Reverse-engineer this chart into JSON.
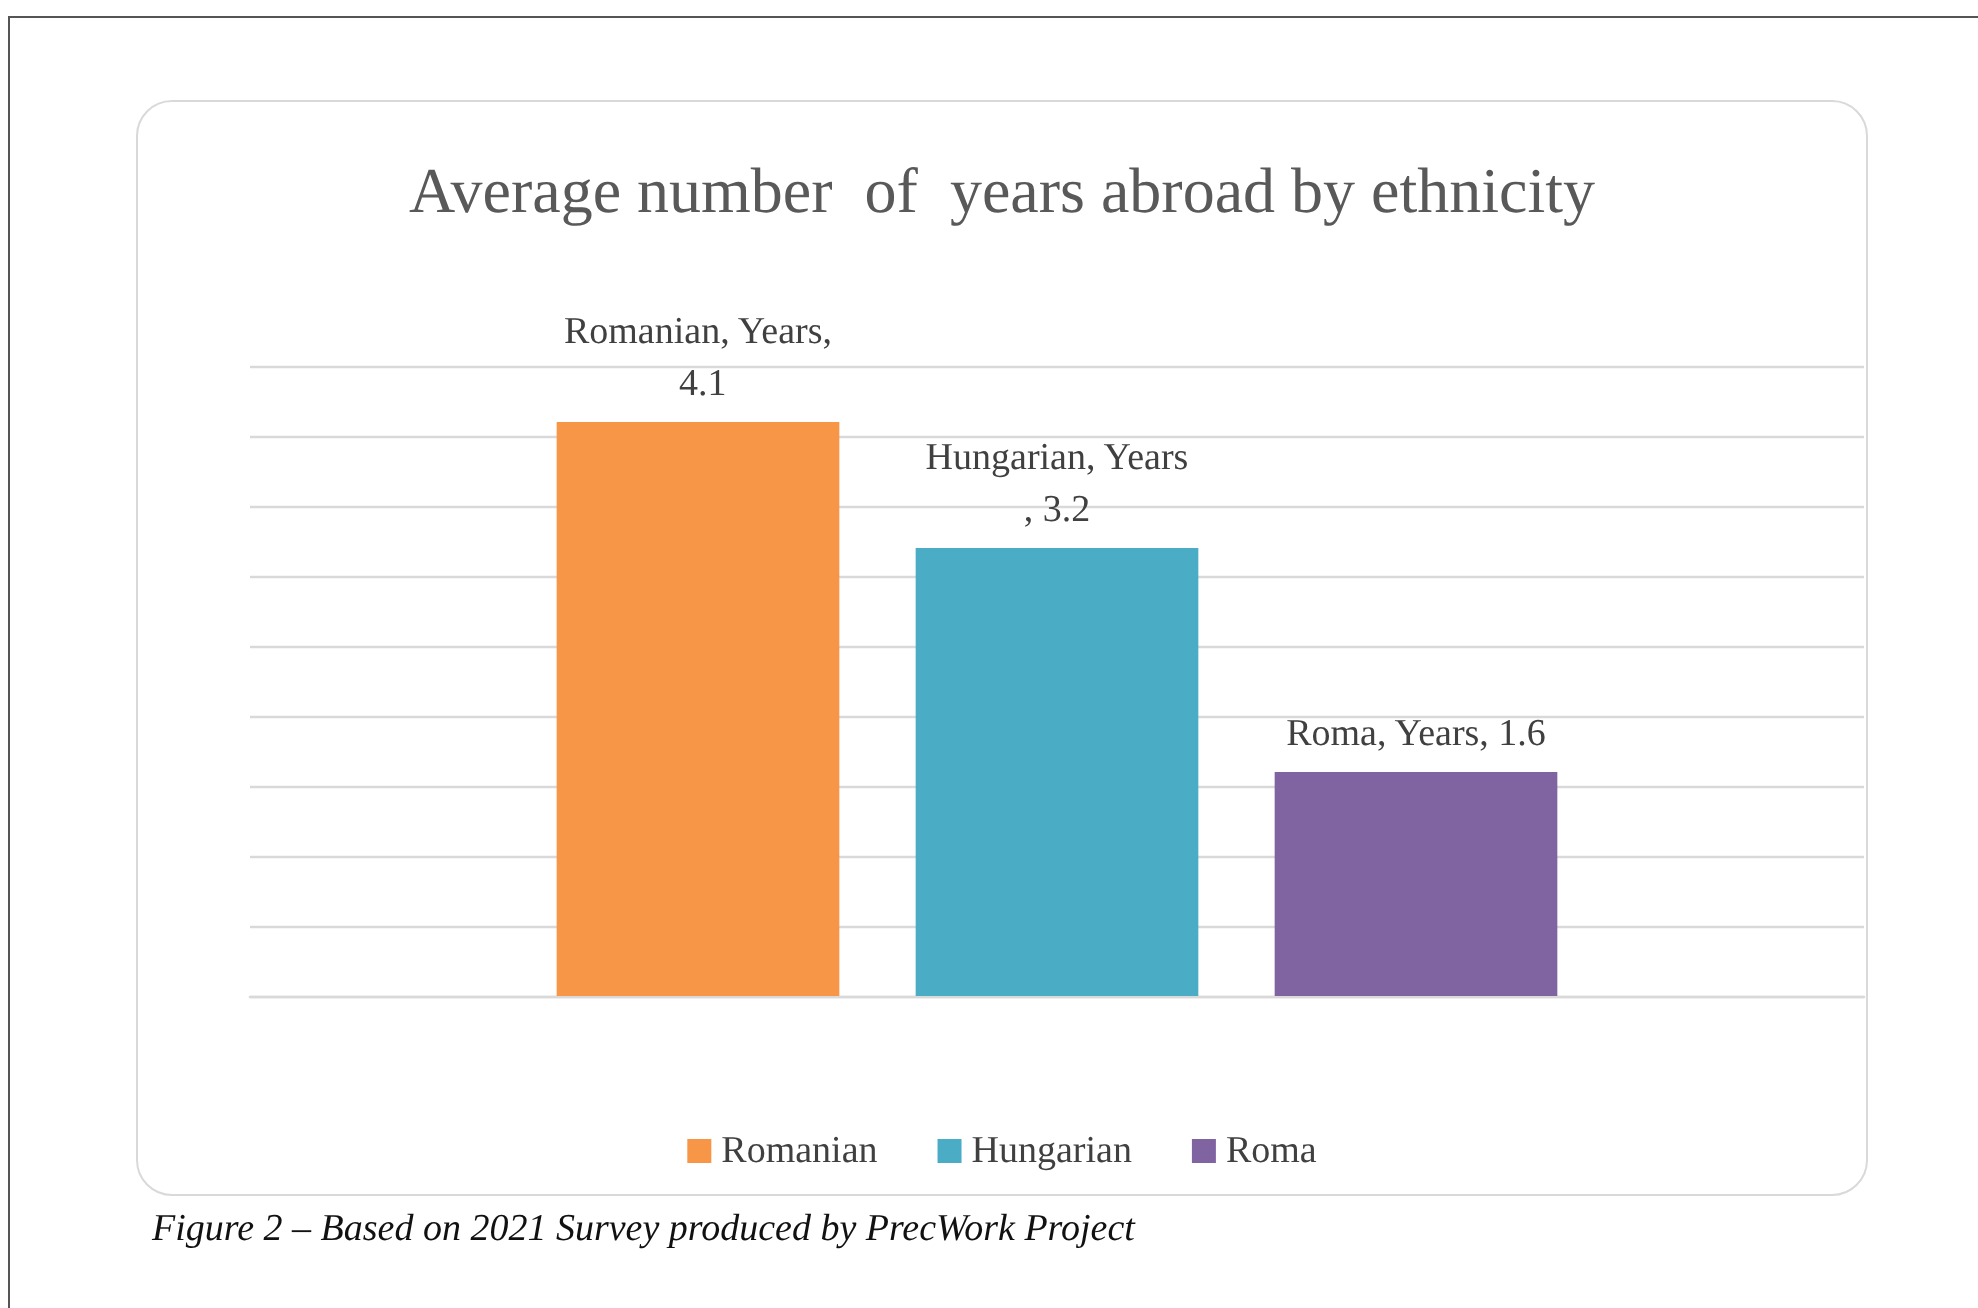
{
  "chart_data": {
    "type": "bar",
    "title": "Average number  of  years abroad by ethnicity",
    "categories": [
      null
    ],
    "series": [
      {
        "name": "Romanian",
        "color": "#f79646",
        "values": [
          4.1
        ],
        "value_labels": [
          "Romanian, Years, 4.1"
        ]
      },
      {
        "name": "Hungarian",
        "color": "#4bacc6",
        "values": [
          3.2
        ],
        "value_labels": [
          "Hungarian, Years, 3.2"
        ]
      },
      {
        "name": "Roma",
        "color": "#8064a2",
        "values": [
          1.6
        ],
        "value_labels": [
          "Roma, Years, 1.6"
        ]
      }
    ],
    "ylim": [
      0,
      4.5
    ],
    "yticks": [
      {
        "value": 0,
        "label": null
      },
      {
        "value": 0.5,
        "label": null
      },
      {
        "value": 1,
        "label": null
      },
      {
        "value": 1.5,
        "label": null
      },
      {
        "value": 2,
        "label": null
      },
      {
        "value": 2.5,
        "label": null
      },
      {
        "value": 3,
        "label": null
      },
      {
        "value": 3.5,
        "label": null
      },
      {
        "value": 4,
        "label": null
      },
      {
        "value": 4.5,
        "label": null
      }
    ],
    "grid": "y",
    "legend": "bottom",
    "tick_labels": false,
    "annotations": [
      "Figure 2 – Based on 2021 Survey produced by PrecWork Project"
    ]
  }
}
